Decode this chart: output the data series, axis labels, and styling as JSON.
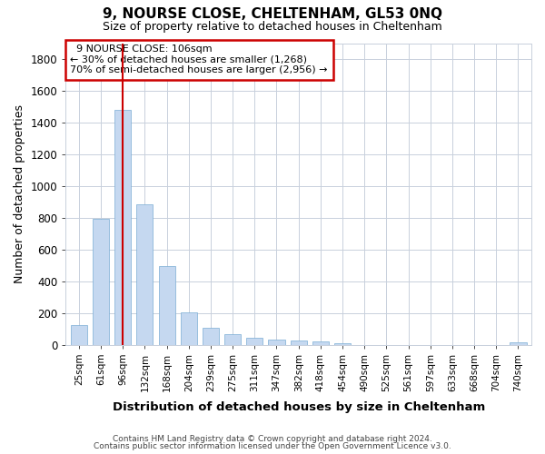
{
  "title_line1": "9, NOURSE CLOSE, CHELTENHAM, GL53 0NQ",
  "title_line2": "Size of property relative to detached houses in Cheltenham",
  "xlabel": "Distribution of detached houses by size in Cheltenham",
  "ylabel": "Number of detached properties",
  "footer_line1": "Contains HM Land Registry data © Crown copyright and database right 2024.",
  "footer_line2": "Contains public sector information licensed under the Open Government Licence v3.0.",
  "categories": [
    "25sqm",
    "61sqm",
    "96sqm",
    "132sqm",
    "168sqm",
    "204sqm",
    "239sqm",
    "275sqm",
    "311sqm",
    "347sqm",
    "382sqm",
    "418sqm",
    "454sqm",
    "490sqm",
    "525sqm",
    "561sqm",
    "597sqm",
    "633sqm",
    "668sqm",
    "704sqm",
    "740sqm"
  ],
  "values": [
    125,
    795,
    1480,
    885,
    495,
    205,
    105,
    65,
    45,
    35,
    25,
    20,
    10,
    0,
    0,
    0,
    0,
    0,
    0,
    0,
    15
  ],
  "bar_color": "#c5d8f0",
  "bar_edge_color": "#7aadd4",
  "ylim": [
    0,
    1900
  ],
  "yticks": [
    0,
    200,
    400,
    600,
    800,
    1000,
    1200,
    1400,
    1600,
    1800
  ],
  "vline_x_index": 2,
  "vline_color": "#cc0000",
  "annotation_title": "9 NOURSE CLOSE: 106sqm",
  "annotation_line1": "← 30% of detached houses are smaller (1,268)",
  "annotation_line2": "70% of semi-detached houses are larger (2,956) →",
  "annotation_box_color": "#cc0000",
  "background_color": "#ffffff",
  "grid_color": "#c8d0dc"
}
